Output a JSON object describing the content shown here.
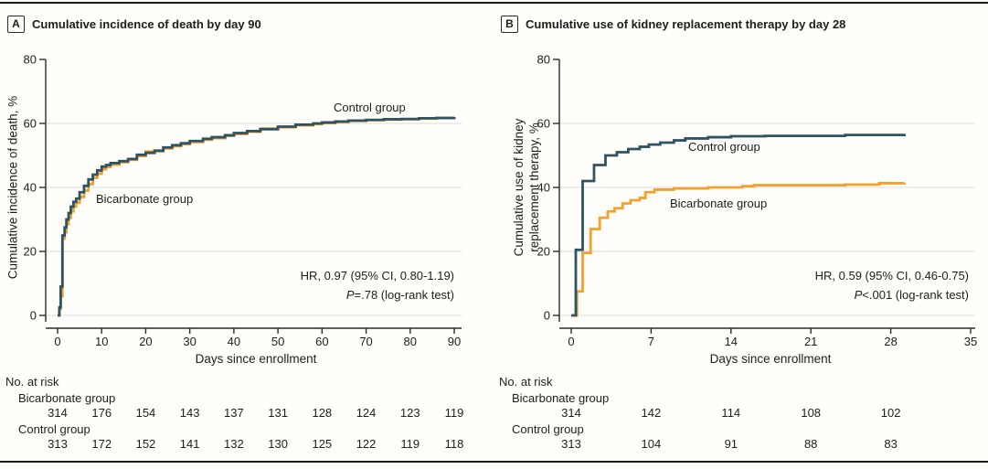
{
  "figure": {
    "background": "#fffefb",
    "rule_color": "#1a1a1a"
  },
  "colors": {
    "control": "#2E5363",
    "bicarbonate": "#F2A12C",
    "grid": "#D9D9D9",
    "axis": "#2A2A2A",
    "text": "#1D1D1D"
  },
  "panels": [
    {
      "tag": "A"
    },
    {
      "tag": "B"
    }
  ],
  "chart_data": [
    {
      "type": "line",
      "subtype": "step",
      "title": "Cumulative incidence of death by day 90",
      "xlabel": "Days since enrollment",
      "ylabel": "Cumulative incidence of death, %",
      "xlim": [
        0,
        90
      ],
      "ylim": [
        0,
        80
      ],
      "xticks": [
        0,
        10,
        20,
        30,
        40,
        50,
        60,
        70,
        80,
        90
      ],
      "yticks": [
        0,
        20,
        40,
        60,
        80
      ],
      "gridlines_y": [
        0,
        20,
        40,
        60
      ],
      "legend_position": "on-curve",
      "series": [
        {
          "name": "Control group",
          "color": "#2E5363",
          "points": [
            [
              0,
              0
            ],
            [
              0.4,
              2.5
            ],
            [
              0.7,
              9
            ],
            [
              1.1,
              25
            ],
            [
              1.6,
              27.5
            ],
            [
              2,
              30
            ],
            [
              2.5,
              32
            ],
            [
              3,
              34
            ],
            [
              3.6,
              35.5
            ],
            [
              4.2,
              36.5
            ],
            [
              5,
              38.5
            ],
            [
              6,
              40.5
            ],
            [
              7,
              42.5
            ],
            [
              8,
              44
            ],
            [
              9,
              45.3
            ],
            [
              10,
              46.5
            ],
            [
              11,
              47
            ],
            [
              12,
              47.6
            ],
            [
              14,
              48.2
            ],
            [
              16,
              48.9
            ],
            [
              18,
              50.2
            ],
            [
              20,
              50.8
            ],
            [
              22,
              51.5
            ],
            [
              24,
              52.5
            ],
            [
              26,
              53.2
            ],
            [
              28,
              53.8
            ],
            [
              30,
              54.5
            ],
            [
              33,
              55.2
            ],
            [
              35,
              55.7
            ],
            [
              38,
              56.3
            ],
            [
              40,
              57
            ],
            [
              43,
              57.6
            ],
            [
              46,
              58.2
            ],
            [
              50,
              59
            ],
            [
              54,
              59.6
            ],
            [
              58,
              60
            ],
            [
              60,
              60.3
            ],
            [
              63,
              60.6
            ],
            [
              66,
              60.9
            ],
            [
              70,
              61.1
            ],
            [
              74,
              61.3
            ],
            [
              78,
              61.4
            ],
            [
              82,
              61.6
            ],
            [
              86,
              61.7
            ],
            [
              90,
              62
            ]
          ]
        },
        {
          "name": "Bicarbonate group",
          "color": "#F2A12C",
          "points": [
            [
              0,
              0
            ],
            [
              0.4,
              2
            ],
            [
              0.7,
              6
            ],
            [
              1.1,
              24
            ],
            [
              1.6,
              26
            ],
            [
              2,
              28.5
            ],
            [
              2.5,
              30.5
            ],
            [
              3,
              32.5
            ],
            [
              3.6,
              34
            ],
            [
              4.2,
              35.3
            ],
            [
              5,
              37
            ],
            [
              6,
              39
            ],
            [
              7,
              41
            ],
            [
              8,
              43
            ],
            [
              9,
              44.3
            ],
            [
              10,
              45.7
            ],
            [
              11,
              46.4
            ],
            [
              12,
              47.1
            ],
            [
              14,
              47.9
            ],
            [
              16,
              48.6
            ],
            [
              18,
              49.8
            ],
            [
              20,
              51.2
            ],
            [
              22,
              51.3
            ],
            [
              24,
              52.2
            ],
            [
              26,
              52.9
            ],
            [
              28,
              53.5
            ],
            [
              30,
              54.2
            ],
            [
              33,
              54.9
            ],
            [
              35,
              55.4
            ],
            [
              38,
              56.1
            ],
            [
              40,
              56.7
            ],
            [
              43,
              57.4
            ],
            [
              46,
              58.4
            ],
            [
              50,
              58.8
            ],
            [
              54,
              59.4
            ],
            [
              58,
              59.8
            ],
            [
              60,
              60.1
            ],
            [
              63,
              60.4
            ],
            [
              66,
              60.8
            ],
            [
              70,
              61
            ],
            [
              74,
              61.2
            ],
            [
              78,
              61.3
            ],
            [
              82,
              61.5
            ],
            [
              86,
              61.7
            ],
            [
              90,
              62
            ]
          ]
        }
      ],
      "annotation": {
        "line1": "HR, 0.97 (95% CI, 0.80-1.19)",
        "p_italic": "P",
        "line2_rest": "=.78 (log-rank test)"
      },
      "risk_table": {
        "label": "No. at risk",
        "x": [
          0,
          10,
          20,
          30,
          40,
          50,
          60,
          70,
          80,
          90
        ],
        "rows": [
          {
            "name": "Bicarbonate group",
            "values": [
              314,
              176,
              154,
              143,
              137,
              131,
              128,
              124,
              123,
              119
            ]
          },
          {
            "name": "Control group",
            "values": [
              313,
              172,
              152,
              141,
              132,
              130,
              125,
              122,
              119,
              118
            ]
          }
        ]
      }
    },
    {
      "type": "line",
      "subtype": "step",
      "title": "Cumulative use of kidney replacement therapy by day 28",
      "xlabel": "Days since enrollment",
      "ylabel": "Cumulative use of kidney\nreplacement therapy, %",
      "xlim": [
        0,
        35
      ],
      "ylim": [
        0,
        80
      ],
      "xticks": [
        0,
        7,
        14,
        21,
        28,
        35
      ],
      "yticks": [
        0,
        20,
        40,
        60,
        80
      ],
      "gridlines_y": [
        0,
        20,
        40,
        60
      ],
      "legend_position": "on-curve",
      "series": [
        {
          "name": "Control group",
          "color": "#2E5363",
          "points": [
            [
              0,
              0
            ],
            [
              0.4,
              20.5
            ],
            [
              1,
              42
            ],
            [
              2,
              47
            ],
            [
              3,
              50
            ],
            [
              4,
              51
            ],
            [
              5,
              52
            ],
            [
              6,
              52.7
            ],
            [
              6.8,
              53.4
            ],
            [
              7.8,
              54
            ],
            [
              9,
              54.7
            ],
            [
              10,
              55.3
            ],
            [
              12,
              55.7
            ],
            [
              14,
              56
            ],
            [
              17,
              56.1
            ],
            [
              24,
              56.4
            ],
            [
              29.2,
              56.7
            ]
          ]
        },
        {
          "name": "Bicarbonate group",
          "color": "#F2A12C",
          "points": [
            [
              0,
              0
            ],
            [
              0.5,
              7.5
            ],
            [
              1,
              19.5
            ],
            [
              1.7,
              27
            ],
            [
              2.5,
              30.5
            ],
            [
              3.2,
              32.5
            ],
            [
              3.8,
              33.5
            ],
            [
              4.5,
              35
            ],
            [
              5.2,
              36
            ],
            [
              6,
              36.7
            ],
            [
              6.5,
              38.5
            ],
            [
              7.3,
              39.3
            ],
            [
              9,
              39.7
            ],
            [
              12,
              40
            ],
            [
              15,
              40.4
            ],
            [
              16,
              40.7
            ],
            [
              24,
              40.9
            ],
            [
              27,
              41.3
            ],
            [
              29.2,
              41.4
            ]
          ]
        }
      ],
      "annotation": {
        "line1": "HR, 0.59 (95% CI, 0.46-0.75)",
        "p_italic": "P",
        "line2_rest": "<.001 (log-rank test)"
      },
      "risk_table": {
        "label": "No. at risk",
        "x": [
          0,
          7,
          14,
          21,
          28
        ],
        "rows": [
          {
            "name": "Bicarbonate group",
            "values": [
              314,
              142,
              114,
              108,
              102
            ]
          },
          {
            "name": "Control group",
            "values": [
              313,
              104,
              91,
              88,
              83
            ]
          }
        ]
      }
    }
  ]
}
